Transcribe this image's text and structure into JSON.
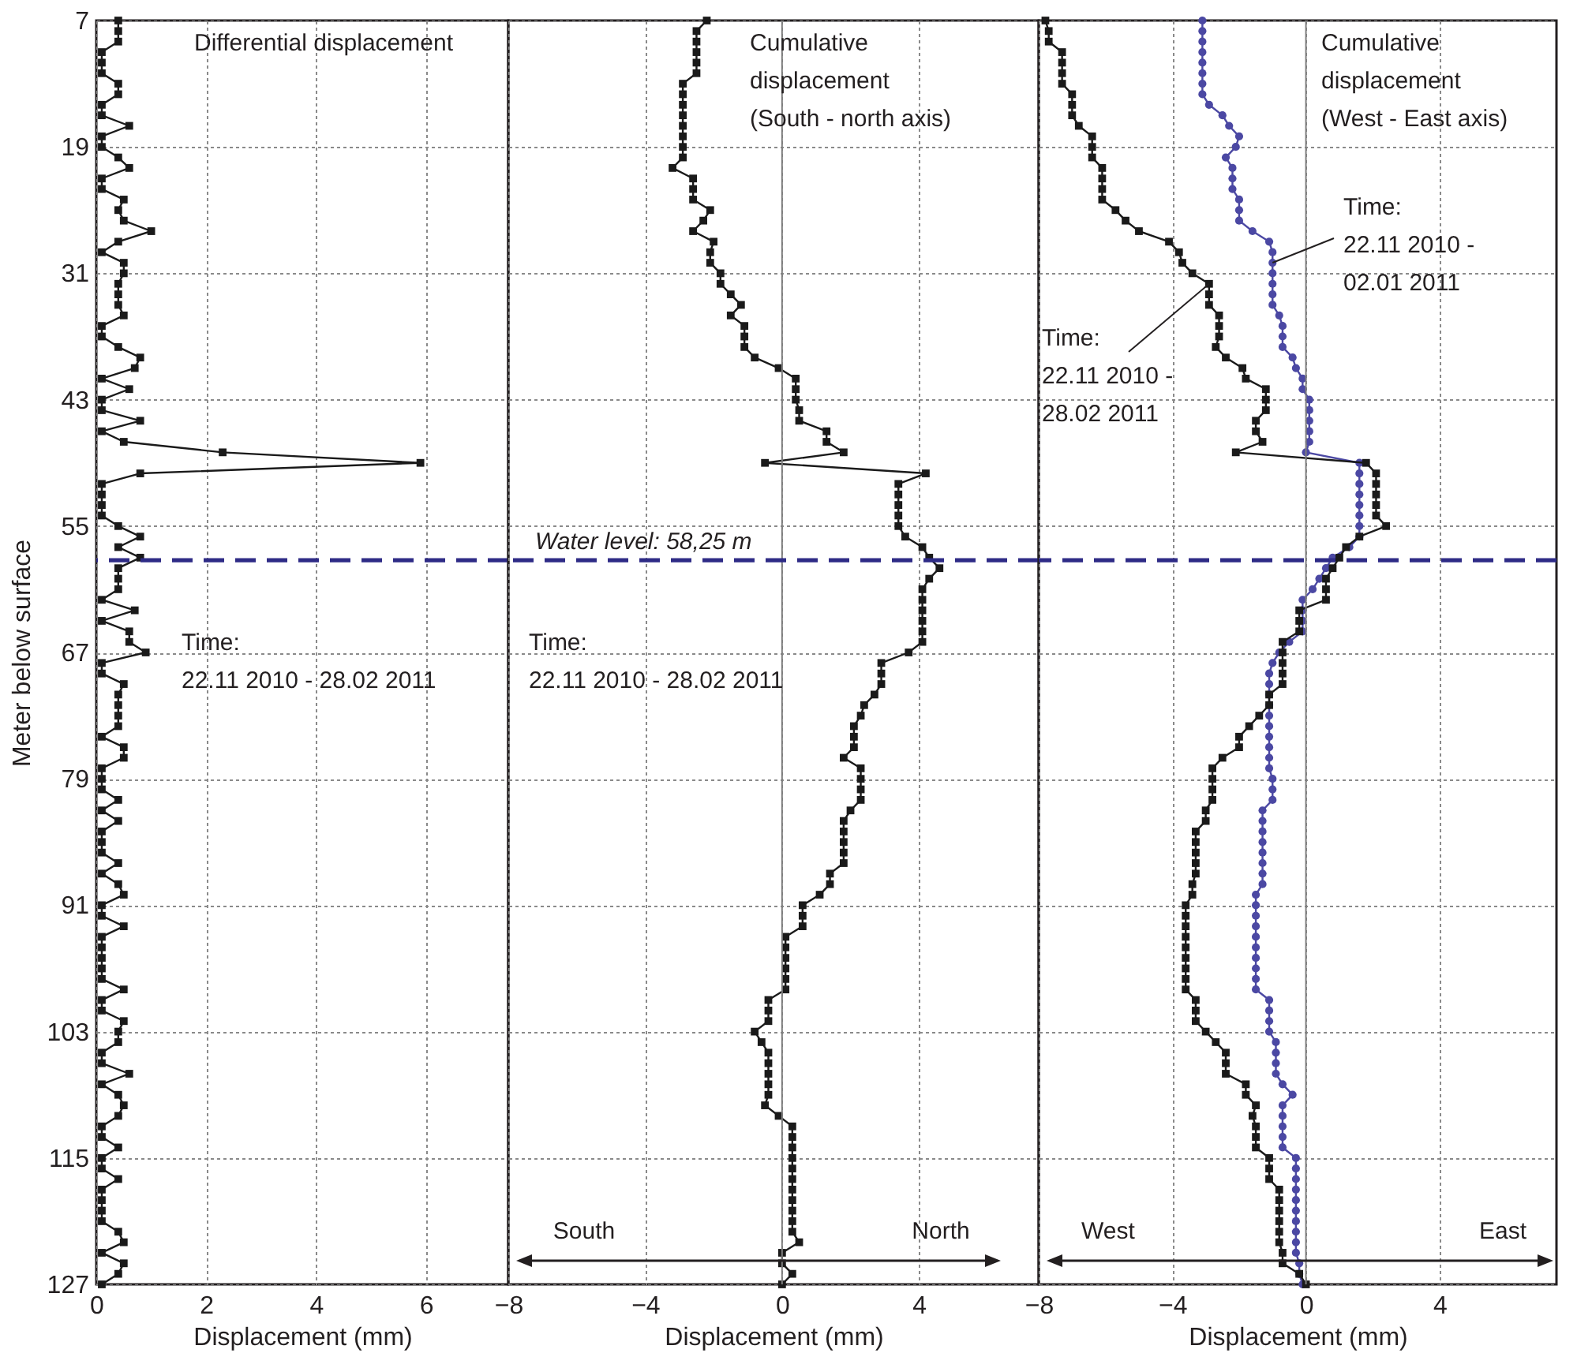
{
  "chart_data": [
    {
      "type": "line",
      "orientation": "horizontal",
      "title": "Differential displacement",
      "xlabel": "Displacement (mm)",
      "ylabel": "Meter below surface",
      "annotations": [
        "Time:\n22.11 2010 - 28.02 2011"
      ],
      "xlim": [
        0,
        7.5
      ],
      "xticks": [
        0,
        2,
        4,
        6
      ],
      "ylim": [
        127,
        7
      ],
      "yticks": [
        7,
        19,
        31,
        43,
        55,
        67,
        79,
        91,
        103,
        115,
        127
      ],
      "grid": true,
      "ref_lines": [
        {
          "axis": "y",
          "value": 58.25,
          "color": "#2e2b86",
          "line_style": "dashed"
        }
      ],
      "x": [
        7,
        8,
        9,
        10,
        11,
        12,
        13,
        14,
        15,
        16,
        17,
        18,
        19,
        20,
        21,
        22,
        23,
        24,
        25,
        26,
        27,
        28,
        29,
        30,
        31,
        32,
        33,
        34,
        35,
        36,
        37,
        38,
        39,
        40,
        41,
        42,
        43,
        44,
        45,
        46,
        47,
        48,
        49,
        50,
        51,
        52,
        53,
        54,
        55,
        56,
        57,
        58,
        59,
        60,
        61,
        62,
        63,
        64,
        65,
        66,
        67,
        68,
        69,
        70,
        71,
        72,
        73,
        74,
        75,
        76,
        77,
        78,
        79,
        80,
        81,
        82,
        83,
        84,
        85,
        86,
        87,
        88,
        89,
        90,
        91,
        92,
        93,
        94,
        95,
        96,
        97,
        98,
        99,
        100,
        101,
        102,
        103,
        104,
        105,
        106,
        107,
        108,
        109,
        110,
        111,
        112,
        113,
        114,
        115,
        116,
        117,
        118,
        119,
        120,
        121,
        122,
        123,
        124,
        125,
        126,
        127
      ],
      "series": [
        {
          "color": "#1a1a1a",
          "marker": "square",
          "values": [
            0.4,
            0.4,
            0.4,
            0.1,
            0.1,
            0.1,
            0.4,
            0.4,
            0.1,
            0.1,
            0.6,
            0.1,
            0.1,
            0.4,
            0.6,
            0.1,
            0.1,
            0.5,
            0.4,
            0.5,
            1.0,
            0.4,
            0.1,
            0.5,
            0.5,
            0.4,
            0.4,
            0.4,
            0.5,
            0.1,
            0.1,
            0.4,
            0.8,
            0.7,
            0.1,
            0.6,
            0.1,
            0.1,
            0.8,
            0.1,
            0.5,
            2.3,
            5.9,
            0.8,
            0.1,
            0.1,
            0.1,
            0.1,
            0.4,
            0.8,
            0.4,
            0.8,
            0.4,
            0.4,
            0.4,
            0.1,
            0.7,
            0.1,
            0.6,
            0.6,
            0.9,
            0.1,
            0.1,
            0.5,
            0.4,
            0.4,
            0.4,
            0.4,
            0.1,
            0.5,
            0.5,
            0.1,
            0.1,
            0.1,
            0.4,
            0.1,
            0.4,
            0.1,
            0.1,
            0.1,
            0.4,
            0.1,
            0.4,
            0.5,
            0.1,
            0.1,
            0.5,
            0.1,
            0.1,
            0.1,
            0.1,
            0.1,
            0.5,
            0.1,
            0.1,
            0.5,
            0.4,
            0.4,
            0.1,
            0.1,
            0.6,
            0.1,
            0.4,
            0.5,
            0.4,
            0.1,
            0.1,
            0.4,
            0.1,
            0.1,
            0.4,
            0.1,
            0.1,
            0.1,
            0.1,
            0.4,
            0.5,
            0.1,
            0.5,
            0.4,
            0.1
          ]
        }
      ]
    },
    {
      "type": "line",
      "orientation": "horizontal",
      "title": "Cumulative\ndisplacement\n(South - north axis)",
      "xlabel": "Displacement (mm)",
      "annotations": [
        "Time:\n22.11 2010 - 28.02 2011",
        "South",
        "North"
      ],
      "xlim": [
        -8,
        7.5
      ],
      "xticks": [
        -8,
        -4,
        0,
        4
      ],
      "ylim": [
        127,
        7
      ],
      "yticks": [
        7,
        19,
        31,
        43,
        55,
        67,
        79,
        91,
        103,
        115,
        127
      ],
      "grid": true,
      "tick_labels": "x",
      "ref_lines": [
        {
          "axis": "x",
          "value": 0,
          "color": "#7f7f7f",
          "line_style": "solid"
        },
        {
          "axis": "y",
          "value": 58.25,
          "color": "#2e2b86",
          "line_style": "dashed",
          "label": "Water level: 58,25 m"
        }
      ],
      "x": [
        7,
        8,
        9,
        10,
        11,
        12,
        13,
        14,
        15,
        16,
        17,
        18,
        19,
        20,
        21,
        22,
        23,
        24,
        25,
        26,
        27,
        28,
        29,
        30,
        31,
        32,
        33,
        34,
        35,
        36,
        37,
        38,
        39,
        40,
        41,
        42,
        43,
        44,
        45,
        46,
        47,
        48,
        49,
        50,
        51,
        52,
        53,
        54,
        55,
        56,
        57,
        58,
        59,
        60,
        61,
        62,
        63,
        64,
        65,
        66,
        67,
        68,
        69,
        70,
        71,
        72,
        73,
        74,
        75,
        76,
        77,
        78,
        79,
        80,
        81,
        82,
        83,
        84,
        85,
        86,
        87,
        88,
        89,
        90,
        91,
        92,
        93,
        94,
        95,
        96,
        97,
        98,
        99,
        100,
        101,
        102,
        103,
        104,
        105,
        106,
        107,
        108,
        109,
        110,
        111,
        112,
        113,
        114,
        115,
        116,
        117,
        118,
        119,
        120,
        121,
        122,
        123,
        124,
        125,
        126,
        127
      ],
      "series": [
        {
          "color": "#1a1a1a",
          "marker": "square",
          "values": [
            -2.2,
            -2.5,
            -2.5,
            -2.5,
            -2.5,
            -2.5,
            -2.9,
            -2.9,
            -2.9,
            -2.9,
            -2.9,
            -2.9,
            -2.9,
            -2.9,
            -3.2,
            -2.6,
            -2.6,
            -2.6,
            -2.1,
            -2.3,
            -2.6,
            -2.0,
            -2.1,
            -2.1,
            -1.8,
            -1.8,
            -1.5,
            -1.2,
            -1.5,
            -1.1,
            -1.1,
            -1.1,
            -0.8,
            -0.1,
            0.4,
            0.4,
            0.4,
            0.5,
            0.5,
            1.3,
            1.3,
            1.8,
            -0.5,
            4.2,
            3.4,
            3.4,
            3.4,
            3.4,
            3.4,
            3.6,
            4.1,
            4.3,
            4.6,
            4.3,
            4.1,
            4.1,
            4.1,
            4.1,
            4.1,
            4.1,
            3.7,
            2.9,
            2.9,
            2.9,
            2.7,
            2.4,
            2.3,
            2.1,
            2.1,
            2.1,
            1.8,
            2.3,
            2.3,
            2.3,
            2.3,
            2.0,
            1.8,
            1.8,
            1.8,
            1.8,
            1.8,
            1.4,
            1.4,
            1.1,
            0.6,
            0.6,
            0.6,
            0.1,
            0.1,
            0.1,
            0.1,
            0.1,
            0.1,
            -0.4,
            -0.4,
            -0.4,
            -0.8,
            -0.6,
            -0.4,
            -0.4,
            -0.4,
            -0.4,
            -0.4,
            -0.5,
            -0.1,
            0.3,
            0.3,
            0.3,
            0.3,
            0.3,
            0.3,
            0.3,
            0.3,
            0.3,
            0.3,
            0.3,
            0.5,
            0,
            0,
            0.3,
            0
          ]
        }
      ]
    },
    {
      "type": "line",
      "orientation": "horizontal",
      "title": "Cumulative\ndisplacement\n(West - East axis)",
      "xlabel": "Displacement (mm)",
      "annotations": [
        {
          "text": "Time:\n22.11 2010 -\n02.01 2011",
          "x": -1.0,
          "y": 30
        },
        {
          "text": "Time:\n22.11 2010 -\n28.02 2011",
          "x": -2.9,
          "y": 32
        },
        "West",
        "East"
      ],
      "xlim": [
        -8,
        7.5
      ],
      "xticks": [
        -8,
        -4,
        0,
        4
      ],
      "ylim": [
        127,
        7
      ],
      "yticks": [
        7,
        19,
        31,
        43,
        55,
        67,
        79,
        91,
        103,
        115,
        127
      ],
      "grid": true,
      "tick_labels": "x",
      "ref_lines": [
        {
          "axis": "x",
          "value": 0,
          "color": "#7f7f7f",
          "line_style": "solid"
        },
        {
          "axis": "y",
          "value": 58.25,
          "color": "#2e2b86",
          "line_style": "dashed"
        }
      ],
      "x": [
        7,
        8,
        9,
        10,
        11,
        12,
        13,
        14,
        15,
        16,
        17,
        18,
        19,
        20,
        21,
        22,
        23,
        24,
        25,
        26,
        27,
        28,
        29,
        30,
        31,
        32,
        33,
        34,
        35,
        36,
        37,
        38,
        39,
        40,
        41,
        42,
        43,
        44,
        45,
        46,
        47,
        48,
        49,
        50,
        51,
        52,
        53,
        54,
        55,
        56,
        57,
        58,
        59,
        60,
        61,
        62,
        63,
        64,
        65,
        66,
        67,
        68,
        69,
        70,
        71,
        72,
        73,
        74,
        75,
        76,
        77,
        78,
        79,
        80,
        81,
        82,
        83,
        84,
        85,
        86,
        87,
        88,
        89,
        90,
        91,
        92,
        93,
        94,
        95,
        96,
        97,
        98,
        99,
        100,
        101,
        102,
        103,
        104,
        105,
        106,
        107,
        108,
        109,
        110,
        111,
        112,
        113,
        114,
        115,
        116,
        117,
        118,
        119,
        120,
        121,
        122,
        123,
        124,
        125,
        126,
        127
      ],
      "series": [
        {
          "color": "#4b48a3",
          "marker": "circle",
          "values": [
            -3.1,
            -3.1,
            -3.1,
            -3.1,
            -3.1,
            -3.1,
            -3.1,
            -3.1,
            -2.9,
            -2.5,
            -2.3,
            -2.0,
            -2.1,
            -2.4,
            -2.2,
            -2.2,
            -2.2,
            -2.0,
            -2.0,
            -2.0,
            -1.6,
            -1.1,
            -1.0,
            -1.0,
            -1.0,
            -1.0,
            -1.0,
            -1.0,
            -0.8,
            -0.7,
            -0.7,
            -0.7,
            -0.4,
            -0.3,
            -0.1,
            -0.1,
            0.1,
            0.1,
            0.1,
            0.1,
            0.1,
            0.0,
            1.6,
            1.6,
            1.6,
            1.6,
            1.6,
            1.6,
            1.6,
            1.6,
            1.3,
            0.8,
            0.6,
            0.4,
            0.2,
            -0.1,
            -0.1,
            -0.1,
            -0.1,
            -0.5,
            -0.8,
            -1.0,
            -1.1,
            -1.1,
            -1.1,
            -1.1,
            -1.1,
            -1.1,
            -1.1,
            -1.1,
            -1.1,
            -1.1,
            -1.0,
            -1.0,
            -1.0,
            -1.3,
            -1.3,
            -1.3,
            -1.3,
            -1.3,
            -1.3,
            -1.3,
            -1.3,
            -1.5,
            -1.5,
            -1.5,
            -1.5,
            -1.5,
            -1.5,
            -1.5,
            -1.5,
            -1.5,
            -1.5,
            -1.1,
            -1.1,
            -1.1,
            -1.1,
            -0.9,
            -0.9,
            -0.9,
            -0.9,
            -0.7,
            -0.4,
            -0.7,
            -0.7,
            -0.7,
            -0.7,
            -0.7,
            -0.3,
            -0.3,
            -0.3,
            -0.3,
            -0.3,
            -0.3,
            -0.3,
            -0.3,
            -0.3,
            -0.3,
            -0.2,
            -0.2,
            -0.1
          ]
        },
        {
          "color": "#1a1a1a",
          "marker": "square",
          "values": [
            -7.8,
            -7.7,
            -7.7,
            -7.3,
            -7.3,
            -7.3,
            -7.3,
            -7.0,
            -7.0,
            -7.0,
            -6.8,
            -6.4,
            -6.4,
            -6.4,
            -6.1,
            -6.1,
            -6.1,
            -6.1,
            -5.7,
            -5.4,
            -5.0,
            -4.1,
            -3.8,
            -3.7,
            -3.4,
            -2.9,
            -2.9,
            -2.9,
            -2.6,
            -2.6,
            -2.6,
            -2.7,
            -2.4,
            -1.9,
            -1.8,
            -1.2,
            -1.2,
            -1.2,
            -1.5,
            -1.5,
            -1.3,
            -2.1,
            1.8,
            2.1,
            2.1,
            2.1,
            2.1,
            2.1,
            2.4,
            1.6,
            1.2,
            1.0,
            0.8,
            0.6,
            0.6,
            0.6,
            -0.2,
            -0.2,
            -0.2,
            -0.7,
            -0.7,
            -0.7,
            -0.7,
            -0.7,
            -1.1,
            -1.1,
            -1.4,
            -1.7,
            -2.0,
            -2.0,
            -2.5,
            -2.8,
            -2.8,
            -2.8,
            -2.8,
            -3.0,
            -3.0,
            -3.3,
            -3.3,
            -3.3,
            -3.3,
            -3.3,
            -3.4,
            -3.4,
            -3.6,
            -3.6,
            -3.6,
            -3.6,
            -3.6,
            -3.6,
            -3.6,
            -3.6,
            -3.6,
            -3.3,
            -3.3,
            -3.3,
            -3.0,
            -2.7,
            -2.4,
            -2.4,
            -2.4,
            -1.8,
            -1.8,
            -1.5,
            -1.6,
            -1.5,
            -1.5,
            -1.5,
            -1.1,
            -1.1,
            -1.1,
            -0.8,
            -0.8,
            -0.8,
            -0.8,
            -0.8,
            -0.8,
            -0.7,
            -0.7,
            -0.2,
            0
          ]
        }
      ]
    }
  ]
}
